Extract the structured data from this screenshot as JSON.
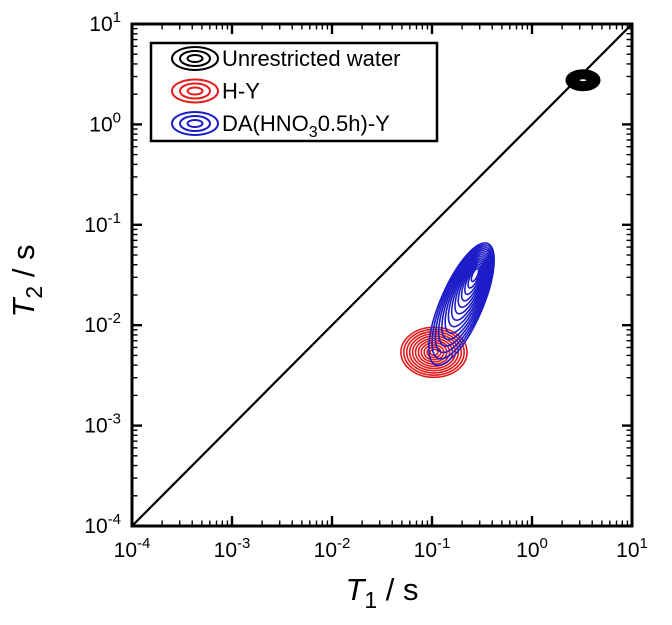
{
  "chart_data": {
    "type": "contour",
    "description": "T1-T2 log-log correlation map with three contour peaks and a T1 = T2 diagonal line",
    "xlabel": {
      "symbol": "T",
      "subscript": "1",
      "unit": " / s"
    },
    "ylabel": {
      "symbol": "T",
      "subscript": "2",
      "unit": " / s"
    },
    "x_log_range": [
      -4,
      1
    ],
    "y_log_range": [
      -4,
      1
    ],
    "x_tick_exponents": [
      -4,
      -3,
      -2,
      -1,
      0,
      1
    ],
    "y_tick_exponents": [
      -4,
      -3,
      -2,
      -1,
      0,
      1
    ],
    "minor_tick_mantissas": [
      2,
      3,
      4,
      5,
      6,
      7,
      8,
      9
    ],
    "tick_base": "10",
    "grid": false,
    "diagonal_line": {
      "from_log10": [
        -4,
        -4
      ],
      "to_log10": [
        1,
        1
      ],
      "color": "#000000",
      "width": 2.2
    },
    "series": [
      {
        "name": "H-Y",
        "color": "#e31b1b",
        "peak_t1_s": 0.1,
        "peak_t2_s": 0.0054,
        "log10_center_inner": [
          -0.98,
          -2.27
        ],
        "log10_center_outer": [
          -0.98,
          -2.27
        ],
        "rings": 11,
        "semi_axes_dec_inner": [
          0.04,
          0.03
        ],
        "semi_axes_dec_outer": [
          0.33,
          0.25
        ],
        "angle_deg": 0,
        "stroke_width": 1.6
      },
      {
        "name": "DA(HNO3 0.5h)-Y",
        "color": "#1c1cc8",
        "peak_t1_s": 0.26,
        "peak_t2_s": 0.031,
        "ridge_t1_s": [
          0.12,
          0.35
        ],
        "ridge_t2_s": [
          0.004,
          0.065
        ],
        "log10_center_inner": [
          -0.57,
          -1.5
        ],
        "log10_center_outer": [
          -0.705,
          -1.79
        ],
        "rings": 14,
        "semi_axes_dec_inner": [
          0.07,
          0.025
        ],
        "semi_axes_dec_outer": [
          0.66,
          0.21
        ],
        "angle_deg": -66.5,
        "stroke_width": 1.6
      },
      {
        "name": "Unrestricted water",
        "color": "#000000",
        "peak_t1_s": 3.2,
        "peak_t2_s": 2.8,
        "log10_center_inner": [
          0.51,
          0.44
        ],
        "log10_center_outer": [
          0.51,
          0.44
        ],
        "rings": 5,
        "semi_axes_dec_inner": [
          0.05,
          0.025
        ],
        "semi_axes_dec_outer": [
          0.16,
          0.095
        ],
        "angle_deg": 0,
        "stroke_width": 3
      }
    ],
    "legend": {
      "position": "top-left-inside",
      "border_color": "#000000",
      "background": "#ffffff",
      "entries": [
        {
          "color": "#000000",
          "label_parts": [
            {
              "text": "Unrestricted water"
            }
          ]
        },
        {
          "color": "#e31b1b",
          "label_parts": [
            {
              "text": "H-Y"
            }
          ]
        },
        {
          "color": "#1c1cc8",
          "label_parts": [
            {
              "text": "DA(HNO"
            },
            {
              "text": "3",
              "subscript": true
            },
            {
              "text": "0.5h)-Y"
            }
          ]
        }
      ]
    }
  }
}
